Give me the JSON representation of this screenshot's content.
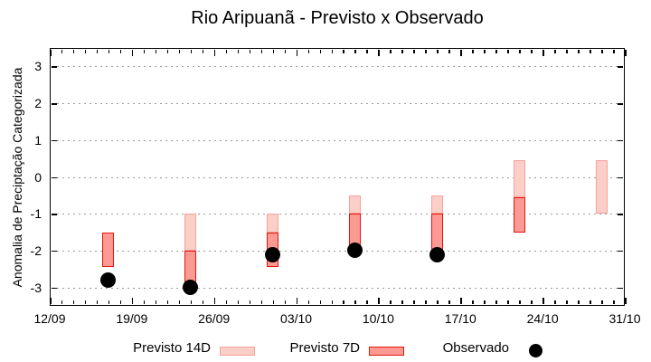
{
  "chart_data": {
    "type": "bar",
    "subtype": "forecast-range-bars-with-observed-dots",
    "title": "Rio Aripuanã - Previsto x Observado",
    "ylabel": "Anomalia de Preciptação Categorizada",
    "xlabel": "",
    "ylim": [
      -3.5,
      3.5
    ],
    "y_ticks": [
      3,
      2,
      1,
      0,
      -1,
      -2,
      -3
    ],
    "grid": "horizontal dotted lines at integer y values",
    "x_tick_labels": [
      "12/09",
      "19/09",
      "26/09",
      "03/10",
      "10/10",
      "17/10",
      "24/10",
      "31/10"
    ],
    "x_days_total": 49,
    "x_major_every": 7,
    "legend": [
      {
        "label": "Previsto 14D",
        "swatch": "light-pink-box"
      },
      {
        "label": "Previsto 7D",
        "swatch": "red-box"
      },
      {
        "label": "Observado",
        "swatch": "black-dot"
      }
    ],
    "points": [
      {
        "day": 5,
        "date": "17/09",
        "previsto14": null,
        "previsto7": [
          -1.5,
          -2.45
        ],
        "observado": -2.8
      },
      {
        "day": 12,
        "date": "24/09",
        "previsto14": [
          -1.0,
          -2.0
        ],
        "previsto7": [
          -2.0,
          -3.0
        ],
        "observado": -3.0
      },
      {
        "day": 19,
        "date": "01/10",
        "previsto14": [
          -1.0,
          -1.5
        ],
        "previsto7": [
          -1.5,
          -2.45
        ],
        "observado": -2.1
      },
      {
        "day": 26,
        "date": "08/10",
        "previsto14": [
          -0.5,
          -1.0
        ],
        "previsto7": [
          -1.0,
          -2.0
        ],
        "observado": -2.0
      },
      {
        "day": 33,
        "date": "15/10",
        "previsto14": [
          -0.5,
          -1.0
        ],
        "previsto7": [
          -1.0,
          -2.0
        ],
        "observado": -2.1
      },
      {
        "day": 40,
        "date": "22/10",
        "previsto14": [
          0.45,
          -0.55
        ],
        "previsto7": [
          -0.55,
          -1.5
        ],
        "observado": null
      },
      {
        "day": 47,
        "date": "29/10",
        "previsto14": [
          0.45,
          -1.0
        ],
        "previsto7": null,
        "observado": null
      }
    ],
    "colors": {
      "previsto14_fill": "#fbcfc8",
      "previsto14_border": "#f5a29a",
      "previsto7_fill": "#fa9a93",
      "previsto7_border": "#e8150e",
      "observado": "#000000",
      "grid": "#999999",
      "axis": "#000000"
    }
  }
}
